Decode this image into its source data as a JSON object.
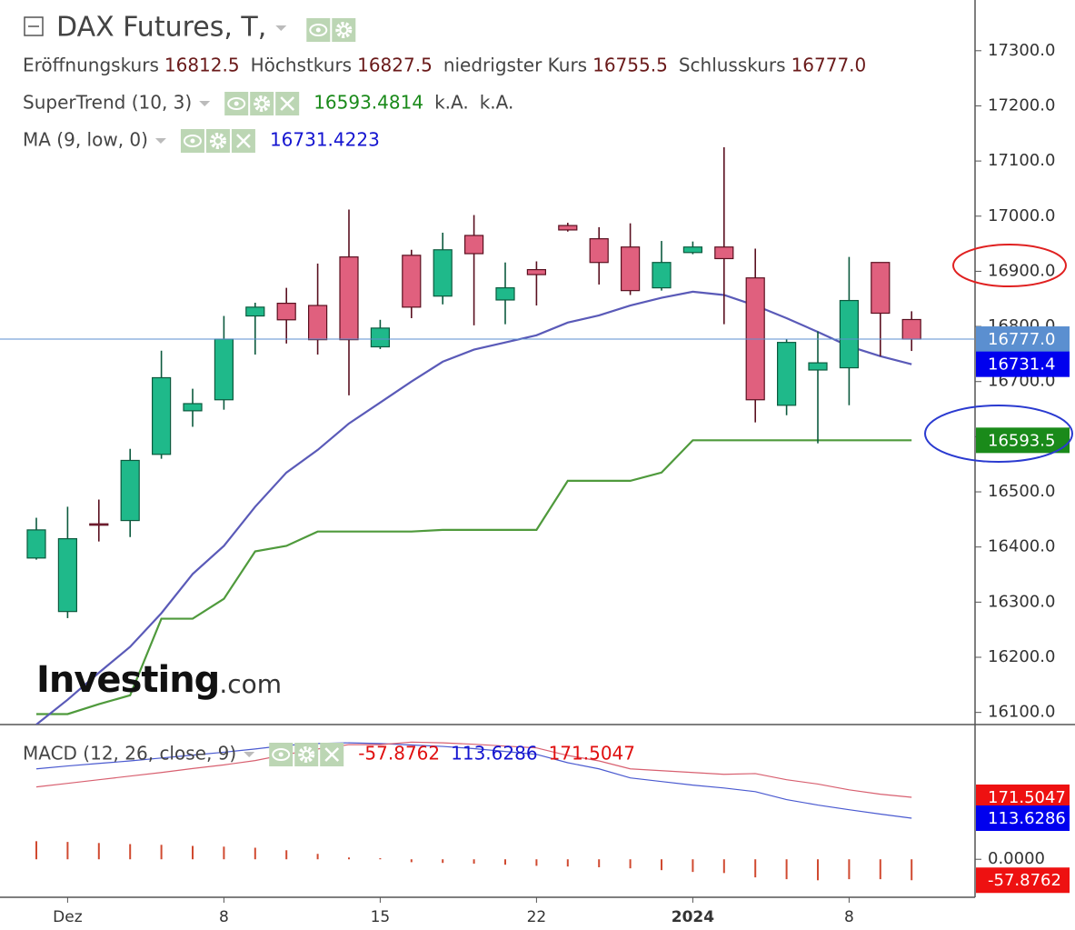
{
  "header": {
    "title": "DAX Futures, T,",
    "ohlc": [
      {
        "label": "Eröffnungskurs",
        "value": "16812.5"
      },
      {
        "label": "Höchstkurs",
        "value": "16827.5"
      },
      {
        "label": "niedrigster Kurs",
        "value": "16755.5"
      },
      {
        "label": "Schlusskurs",
        "value": "16777.0"
      }
    ]
  },
  "indicators": [
    {
      "name": "SuperTrend (10, 3)",
      "values": [
        {
          "text": "16593.4814",
          "color": "#1a8a1a"
        },
        {
          "text": "k.A.",
          "color": "#444444"
        },
        {
          "text": "k.A.",
          "color": "#444444"
        }
      ]
    },
    {
      "name": "MA (9, low, 0)",
      "values": [
        {
          "text": "16731.4223",
          "color": "#1414d0"
        }
      ]
    },
    {
      "name": "MACD (12, 26, close, 9)",
      "values": [
        {
          "text": "-57.8762",
          "color": "#e01010"
        },
        {
          "text": "113.6286",
          "color": "#1414d0"
        },
        {
          "text": "171.5047",
          "color": "#e01010"
        }
      ]
    }
  ],
  "watermark": {
    "brand": "Investing",
    "suffix": ".com"
  },
  "chart_data": [
    {
      "type": "candlestick",
      "categories": [
        null,
        "Dez",
        null,
        null,
        null,
        null,
        "8",
        null,
        null,
        null,
        null,
        "15",
        null,
        null,
        null,
        null,
        "22",
        null,
        null,
        null,
        null,
        "2024",
        null,
        null,
        null,
        null,
        "8",
        null,
        null
      ],
      "open": [
        16380,
        16283,
        16442,
        16448,
        16568,
        16647,
        16667,
        16819,
        16842,
        16838,
        16926,
        16763,
        16929,
        16855,
        16965,
        16848,
        16903,
        16983,
        16959,
        16944,
        16870,
        16934,
        16944,
        16888,
        16657,
        16721,
        16725,
        16916,
        16812.5
      ],
      "high": [
        16453,
        16473,
        16486,
        16578,
        16756,
        16687,
        16819,
        16843,
        16870,
        16914,
        17012,
        16812,
        16939,
        16970,
        17002,
        16916,
        16918,
        16988,
        16980,
        16987,
        16955,
        16954,
        17125,
        16941,
        16777,
        16791,
        16926,
        16916,
        16827.5
      ],
      "low": [
        16377,
        16271,
        16410,
        16418,
        16560,
        16618,
        16649,
        16749,
        16769,
        16749,
        16675,
        16759,
        16815,
        16840,
        16802,
        16804,
        16838,
        16972,
        16876,
        16857,
        16865,
        16931,
        16804,
        16626,
        16639,
        16588,
        16657,
        16746,
        16755.5
      ],
      "close": [
        16431,
        16415,
        16440,
        16557,
        16707,
        16660,
        16777,
        16835,
        16812,
        16776,
        16776,
        16797,
        16835,
        16939,
        16932,
        16870,
        16894,
        16975,
        16916,
        16865,
        16916,
        16944,
        16923,
        16667,
        16771,
        16734,
        16847,
        16824,
        16777
      ],
      "up_color": "#1fb98a",
      "down_color": "#e0607e",
      "series": [
        {
          "name": "SuperTrend (10, 3)",
          "color": "#4f9a3c",
          "values": [
            16097,
            16097,
            16115,
            16131,
            16270,
            16270,
            16306,
            16392,
            16402,
            16428,
            16428,
            16428,
            16428,
            16431,
            16431,
            16431,
            16431,
            16520,
            16520,
            16520,
            16535,
            16593.4814,
            16593.4814,
            16593.4814,
            16593.4814,
            16593.4814,
            16593.4814,
            16593.4814,
            16593.4814
          ]
        },
        {
          "name": "MA (9, low, 0)",
          "color": "#5a5ab8",
          "values": [
            16078,
            16123,
            16172,
            16219,
            16280,
            16351,
            16402,
            16473,
            16535,
            16576,
            16624,
            16662,
            16700,
            16736,
            16758,
            16771,
            16784,
            16807,
            16820,
            16838,
            16852,
            16863,
            16857,
            16838,
            16815,
            16790,
            16764,
            16746,
            16731.4223
          ]
        }
      ],
      "ylim": [
        16078,
        17392
      ],
      "yticks": [
        {
          "value": 16100,
          "label": "16100.0"
        },
        {
          "value": 16200,
          "label": "16200.0"
        },
        {
          "value": 16300,
          "label": "16300.0"
        },
        {
          "value": 16400,
          "label": "16400.0"
        },
        {
          "value": 16500,
          "label": "16500.0"
        },
        {
          "value": 16600,
          "label": "16600.0"
        },
        {
          "value": 16700,
          "label": "16700.0"
        },
        {
          "value": 16800,
          "label": "16800.0"
        },
        {
          "value": 16900,
          "label": "16900.0"
        },
        {
          "value": 17000,
          "label": "17000.0"
        },
        {
          "value": 17100,
          "label": "17100.0"
        },
        {
          "value": 17200,
          "label": "17200.0"
        },
        {
          "value": 17300,
          "label": "17300.0"
        }
      ],
      "markers": [
        {
          "value": 16777,
          "label": "16777.0",
          "color": "#5b8fd0",
          "line": true
        },
        {
          "value": 16731.4223,
          "label": "16731.4",
          "color": "#0000ee"
        },
        {
          "value": 16593.4814,
          "label": "16593.5",
          "color": "#1a8a1a"
        }
      ]
    },
    {
      "type": "macd",
      "series": [
        {
          "style": "histogram",
          "color": "#d04a30",
          "values": [
            50,
            48,
            45,
            42,
            40,
            37,
            35,
            32,
            25,
            15,
            5,
            3,
            -8,
            -10,
            -12,
            -15,
            -18,
            -20,
            -22,
            -25,
            -30,
            -35,
            -38,
            -50,
            -55,
            -58,
            -55,
            -55,
            -57.8762
          ]
        },
        {
          "style": "line",
          "color": "#4a5ad0",
          "values": [
            250,
            258,
            265,
            272,
            280,
            288,
            296,
            305,
            315,
            320,
            322,
            320,
            316,
            312,
            306,
            298,
            290,
            267,
            250,
            225,
            215,
            205,
            197,
            187,
            165,
            150,
            137,
            125,
            113.6286
          ]
        },
        {
          "style": "line",
          "color": "#d86070",
          "values": [
            200,
            210,
            220,
            230,
            240,
            251,
            261,
            273,
            290,
            305,
            317,
            317,
            324,
            322,
            318,
            313,
            308,
            287,
            272,
            250,
            245,
            240,
            235,
            237,
            220,
            208,
            192,
            180,
            171.5047
          ]
        }
      ],
      "ylim": [
        -105,
        370
      ],
      "yticks": [
        {
          "value": 0,
          "label": "0.0000"
        }
      ],
      "markers": [
        {
          "value": 171.5047,
          "label": "171.5047",
          "color": "#ee1111"
        },
        {
          "value": 113.6286,
          "label": "113.6286",
          "color": "#0000ee"
        },
        {
          "value": -57.8762,
          "label": "-57.8762",
          "color": "#ee1111"
        }
      ]
    }
  ]
}
